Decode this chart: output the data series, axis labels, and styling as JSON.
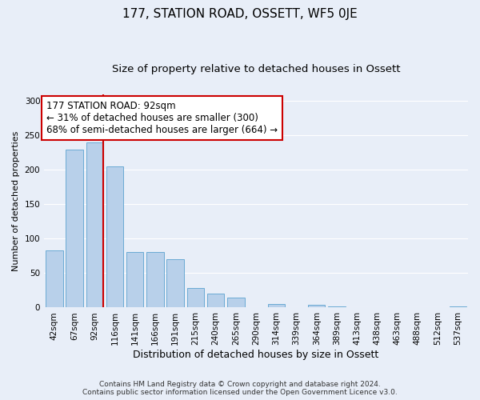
{
  "title": "177, STATION ROAD, OSSETT, WF5 0JE",
  "subtitle": "Size of property relative to detached houses in Ossett",
  "xlabel": "Distribution of detached houses by size in Ossett",
  "ylabel": "Number of detached properties",
  "bar_labels": [
    "42sqm",
    "67sqm",
    "92sqm",
    "116sqm",
    "141sqm",
    "166sqm",
    "191sqm",
    "215sqm",
    "240sqm",
    "265sqm",
    "290sqm",
    "314sqm",
    "339sqm",
    "364sqm",
    "389sqm",
    "413sqm",
    "438sqm",
    "463sqm",
    "488sqm",
    "512sqm",
    "537sqm"
  ],
  "bar_values": [
    83,
    230,
    240,
    205,
    81,
    81,
    70,
    28,
    20,
    14,
    0,
    5,
    0,
    4,
    2,
    0,
    0,
    0,
    0,
    0,
    2
  ],
  "bar_color": "#b8d0ea",
  "bar_edge_color": "#6aaad4",
  "vline_color": "#cc0000",
  "vline_index": 2,
  "annotation_text": "177 STATION ROAD: 92sqm\n← 31% of detached houses are smaller (300)\n68% of semi-detached houses are larger (664) →",
  "annotation_box_color": "#ffffff",
  "annotation_box_edge_color": "#cc0000",
  "ylim": [
    0,
    310
  ],
  "yticks": [
    0,
    50,
    100,
    150,
    200,
    250,
    300
  ],
  "background_color": "#e8eef8",
  "plot_background_color": "#e8eef8",
  "grid_color": "#ffffff",
  "footer_line1": "Contains HM Land Registry data © Crown copyright and database right 2024.",
  "footer_line2": "Contains public sector information licensed under the Open Government Licence v3.0.",
  "title_fontsize": 11,
  "subtitle_fontsize": 9.5,
  "xlabel_fontsize": 9,
  "ylabel_fontsize": 8,
  "tick_fontsize": 7.5,
  "annotation_fontsize": 8.5,
  "footer_fontsize": 6.5
}
